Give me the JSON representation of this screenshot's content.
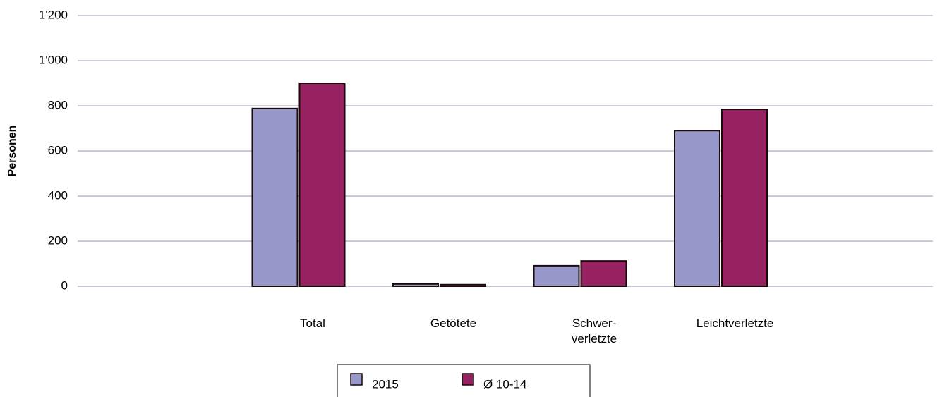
{
  "chart_data": {
    "type": "bar",
    "ylabel": "Personen",
    "categories": [
      "Total",
      "Getötete",
      "Schwer-\nverletzte",
      "Leichtverletzte"
    ],
    "series": [
      {
        "name": "2015",
        "color": "#9797c9",
        "values": [
          788,
          10,
          91,
          690
        ]
      },
      {
        "name": "Ø 10-14",
        "color": "#962262",
        "values": [
          900,
          7,
          112,
          784
        ]
      }
    ],
    "ylim": [
      0,
      1200
    ],
    "yticks": [
      0,
      200,
      400,
      600,
      800,
      {
        "value": 1000,
        "label": "1'000"
      },
      {
        "value": 1200,
        "label": "1'200"
      }
    ],
    "grid": true
  }
}
